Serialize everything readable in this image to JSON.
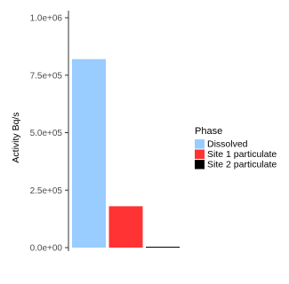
{
  "chart_data": {
    "type": "bar",
    "categories": [
      "Dissolved",
      "Site 1 particulate",
      "Site 2 particulate"
    ],
    "values": [
      820000,
      180000,
      3000
    ],
    "colors": [
      "#99ccff",
      "#ff3333",
      "#000000"
    ],
    "title": "",
    "xlabel": "",
    "ylabel": "Activity Bq/s",
    "ylim": [
      0,
      1000000
    ],
    "yticks": [
      0,
      250000,
      500000,
      750000,
      1000000
    ],
    "ytick_labels": [
      "0.0e+00",
      "2.5e+05",
      "5.0e+05",
      "7.5e+05",
      "1.0e+06"
    ],
    "grid": false,
    "legend": {
      "title": "Phase",
      "placement": "right",
      "entries": [
        "Dissolved",
        "Site 1 particulate",
        "Site 2 particulate"
      ]
    }
  }
}
